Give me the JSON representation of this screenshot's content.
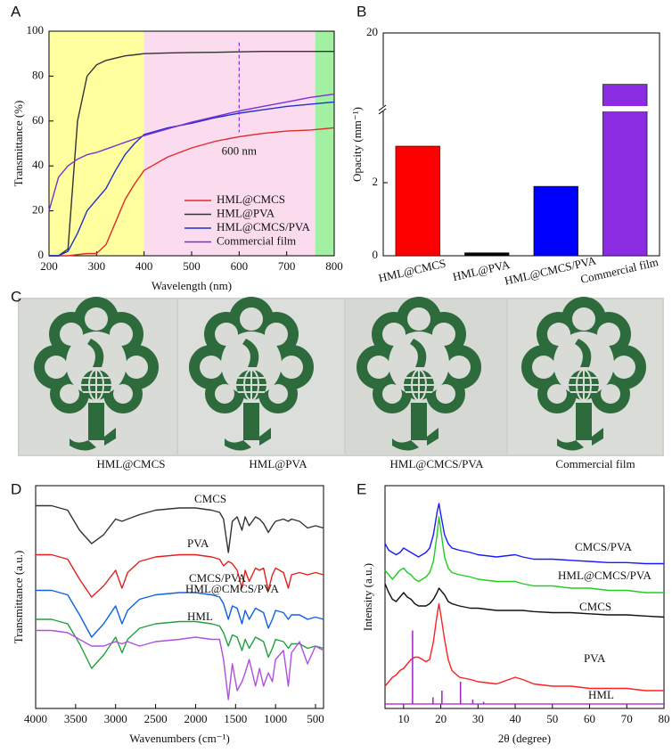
{
  "chart_data": [
    {
      "type": "line",
      "panel_label": "A",
      "x_label": "Wavelength (nm)",
      "y_label": "Transmittance (%)",
      "x": [
        200,
        220,
        240,
        260,
        280,
        300,
        320,
        340,
        360,
        380,
        400,
        450,
        500,
        550,
        600,
        650,
        700,
        750,
        800
      ],
      "xlim": [
        200,
        800
      ],
      "xticks": [
        200,
        300,
        400,
        500,
        600,
        700,
        800
      ],
      "ylim": [
        0,
        100
      ],
      "yticks": [
        0,
        20,
        40,
        60,
        80,
        100
      ],
      "legend": "lower right",
      "regions": [
        {
          "from": 200,
          "to": 400,
          "color": "#ffffa0"
        },
        {
          "from": 400,
          "to": 760,
          "color": "#fbdcef"
        },
        {
          "from": 760,
          "to": 800,
          "color": "#a2f0a2"
        }
      ],
      "annotations": [
        {
          "text": "600 nm",
          "x": 600,
          "y_from": 55,
          "y_to": 95
        }
      ],
      "series": [
        {
          "name": "HML@CMCS",
          "color": "#e02a2a",
          "values": [
            0,
            0,
            0,
            0.5,
            1,
            1,
            5,
            15,
            25,
            32,
            38,
            44,
            48,
            51,
            53,
            54.5,
            55.5,
            56,
            57
          ]
        },
        {
          "name": "HML@PVA",
          "color": "#333333",
          "values": [
            0,
            0,
            3,
            60,
            80,
            85,
            87,
            88,
            89,
            89.5,
            90,
            90.3,
            90.5,
            90.6,
            90.8,
            91,
            91,
            91,
            91
          ]
        },
        {
          "name": "HML@CMCS/PVA",
          "color": "#2030d0",
          "values": [
            0,
            0,
            2,
            10,
            20,
            25,
            30,
            38,
            45,
            50,
            54,
            57,
            59,
            61.5,
            63.5,
            65,
            66.5,
            67.5,
            68.5
          ]
        },
        {
          "name": "Commercial film",
          "color": "#7b2fd6",
          "values": [
            20,
            35,
            40,
            43,
            45,
            46,
            47.5,
            49,
            50.5,
            52,
            53.5,
            56.5,
            59.5,
            62,
            64.5,
            66.5,
            68.5,
            70.5,
            72
          ]
        }
      ]
    },
    {
      "type": "bar",
      "panel_label": "B",
      "y_label": "Opacity (mm⁻¹)",
      "categories": [
        "HML@CMCS",
        "HML@PVA",
        "HML@CMCS/PVA",
        "Commercial film"
      ],
      "values": [
        3.0,
        0.08,
        1.9,
        13.3
      ],
      "colors": [
        "#ff0000",
        "#000000",
        "#0000ff",
        "#8b2be2"
      ],
      "ylim": [
        0,
        20
      ],
      "y_break": [
        4,
        10
      ],
      "yticks": [
        0,
        2,
        20
      ]
    },
    {
      "type": "line",
      "panel_label": "D",
      "x_label": "Wavenumbers (cm⁻¹)",
      "y_label": "Transmittance (a.u.)",
      "x": [
        4000,
        3800,
        3600,
        3450,
        3300,
        3150,
        3000,
        2920,
        2850,
        2700,
        2500,
        2200,
        2000,
        1800,
        1700,
        1650,
        1590,
        1540,
        1480,
        1420,
        1380,
        1330,
        1250,
        1200,
        1150,
        1090,
        1040,
        1000,
        900,
        840,
        800,
        700,
        600,
        500,
        400
      ],
      "xlim": [
        4000,
        400
      ],
      "xticks": [
        4000,
        3500,
        3000,
        2500,
        2000,
        1500,
        1000,
        500
      ],
      "ylim": [
        0,
        100
      ],
      "series": [
        {
          "name": "CMCS",
          "color": "#333333",
          "values": [
            91,
            91,
            89,
            80,
            74,
            78,
            85,
            84,
            85,
            87,
            89,
            90,
            90,
            89,
            88,
            85,
            70,
            84,
            86,
            80,
            86,
            82,
            86,
            85,
            83,
            79,
            82,
            84,
            85,
            84,
            85,
            84,
            81,
            82,
            81
          ]
        },
        {
          "name": "PVA",
          "color": "#e02020",
          "values": [
            69,
            69,
            67,
            58,
            50,
            55,
            62,
            54,
            61,
            66,
            68,
            69,
            69,
            68,
            67,
            64,
            66,
            65,
            62,
            54,
            62,
            57,
            63,
            62,
            63,
            53,
            60,
            63,
            61,
            54,
            60,
            61,
            60,
            61,
            60
          ]
        },
        {
          "name": "CMCS/PVA",
          "color": "#1060e0",
          "values": [
            53,
            53,
            51,
            42,
            32,
            38,
            46,
            38,
            44,
            49,
            51,
            52,
            52,
            51,
            50,
            47,
            40,
            46,
            45,
            38,
            44,
            40,
            45,
            44,
            43,
            36,
            40,
            44,
            43,
            40,
            42,
            42,
            40,
            41,
            40
          ]
        },
        {
          "name": "HML@CMCS/PVA",
          "color": "#20a040",
          "values": [
            40,
            40,
            38,
            29,
            18,
            24,
            32,
            25,
            31,
            36,
            38,
            39,
            39,
            38,
            37,
            34,
            28,
            33,
            32,
            26,
            31,
            27,
            32,
            31,
            30,
            23,
            27,
            31,
            30,
            27,
            29,
            29,
            27,
            28,
            27
          ]
        },
        {
          "name": "HML",
          "color": "#b050e0",
          "values": [
            35,
            35,
            34,
            31,
            28,
            28,
            30,
            29,
            30,
            28,
            30,
            31,
            32,
            31,
            31,
            22,
            4,
            20,
            8,
            12,
            16,
            22,
            10,
            18,
            10,
            16,
            12,
            22,
            26,
            10,
            25,
            30,
            20,
            28,
            26
          ]
        }
      ]
    },
    {
      "type": "line",
      "panel_label": "E",
      "x_label": "2θ (degree)",
      "y_label": "Intensity (a.u.)",
      "x": [
        5,
        6,
        7,
        8,
        9,
        10,
        11,
        12,
        13,
        14,
        15,
        16,
        17,
        18,
        19,
        19.5,
        20,
        21,
        22,
        23,
        25,
        28,
        30,
        35,
        40,
        42,
        45,
        50,
        55,
        60,
        65,
        70,
        75,
        80
      ],
      "xlim": [
        5,
        80
      ],
      "xticks": [
        10,
        20,
        30,
        40,
        50,
        60,
        70,
        80
      ],
      "ylim": [
        0,
        100
      ],
      "series": [
        {
          "name": "CMCS/PVA",
          "color": "#1a1aff",
          "values": [
            74,
            71,
            70,
            69,
            70,
            72,
            71,
            70,
            69,
            68,
            69,
            70,
            72,
            78,
            88,
            92,
            87,
            78,
            74,
            72,
            71,
            70,
            69,
            68,
            69,
            68,
            67,
            67,
            66.5,
            66,
            65.5,
            65.5,
            65,
            65
          ]
        },
        {
          "name": "HML@CMCS/PVA",
          "color": "#22cc22",
          "values": [
            62,
            60,
            58,
            60,
            62,
            63,
            61,
            60,
            58,
            57,
            58,
            59,
            61,
            66,
            78,
            86,
            80,
            68,
            63,
            61,
            60,
            59,
            58,
            57,
            57,
            56,
            55,
            55,
            54,
            54,
            53,
            53,
            52,
            52
          ]
        },
        {
          "name": "CMCS",
          "color": "#111111",
          "values": [
            56,
            52,
            49,
            48,
            50,
            52,
            50,
            49,
            47,
            46,
            46,
            46,
            47,
            49,
            52,
            54,
            53,
            51,
            48,
            47,
            46,
            45,
            45,
            44,
            44,
            44,
            43.5,
            43,
            43,
            42.5,
            42,
            42,
            41.5,
            41
          ]
        },
        {
          "name": "PVA",
          "color": "#ff2020",
          "values": [
            10,
            12,
            14,
            15,
            17,
            18,
            20,
            22,
            23,
            23,
            22,
            21,
            22,
            30,
            42,
            47,
            42,
            31,
            22,
            17,
            14,
            13,
            12,
            11,
            14,
            13,
            11,
            10,
            10,
            9,
            9,
            9,
            8,
            8
          ]
        },
        {
          "name": "HML",
          "color": "#a020c0",
          "style": "stick",
          "baseline": 2,
          "x": [
            12.4,
            17.9,
            20.3,
            25.3,
            28.6,
            31.5
          ],
          "values": [
            35,
            5,
            8,
            12,
            4,
            3
          ]
        }
      ]
    }
  ],
  "photo_panel": {
    "panel_label": "C",
    "captions": [
      "HML@CMCS",
      "HML@PVA",
      "HML@CMCS/PVA",
      "Commercial film"
    ]
  }
}
